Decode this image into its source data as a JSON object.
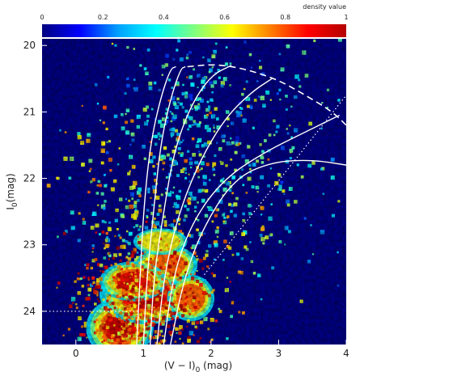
{
  "chart_data": {
    "type": "heatmap",
    "title": "",
    "xlabel": "(V − I)",
    "xlabel_sub": "0",
    "xlabel_unit": " (mag)",
    "ylabel": "I",
    "ylabel_sub": "0",
    "ylabel_unit": "(mag)",
    "xlim": [
      -0.5,
      4.0
    ],
    "ylim": [
      24.5,
      19.9
    ],
    "y_inverted": true,
    "x_ticks": [
      "0",
      "1",
      "2",
      "3",
      "4"
    ],
    "y_ticks": [
      "20",
      "21",
      "22",
      "23",
      "24"
    ],
    "colorbar": {
      "label": "density value",
      "range": [
        0,
        1
      ],
      "ticks": [
        "0",
        "0.2",
        "0.4",
        "0.6",
        "0.8",
        "1"
      ],
      "colormap": [
        "#00007f",
        "#0000ff",
        "#00a0ff",
        "#00ffff",
        "#7fff7f",
        "#ffff00",
        "#ff7f00",
        "#ff0000",
        "#b40000"
      ]
    },
    "background_color": "#000080",
    "density_blobs": [
      {
        "x": 0.65,
        "y": 24.25,
        "rx": 0.5,
        "ry": 0.45,
        "level": 1.0
      },
      {
        "x": 1.05,
        "y": 23.75,
        "rx": 0.7,
        "ry": 0.45,
        "level": 0.95
      },
      {
        "x": 1.35,
        "y": 23.3,
        "rx": 0.45,
        "ry": 0.3,
        "level": 0.85
      },
      {
        "x": 0.85,
        "y": 23.55,
        "rx": 0.5,
        "ry": 0.3,
        "level": 0.9
      },
      {
        "x": 1.7,
        "y": 23.8,
        "rx": 0.35,
        "ry": 0.35,
        "level": 0.8
      },
      {
        "x": 1.25,
        "y": 22.95,
        "rx": 0.4,
        "ry": 0.2,
        "level": 0.7
      }
    ],
    "isochrones": [
      {
        "points": [
          [
            0.9,
            24.5
          ],
          [
            0.95,
            23.5
          ],
          [
            1.0,
            22.5
          ],
          [
            1.1,
            21.5
          ],
          [
            1.25,
            20.8
          ],
          [
            1.4,
            20.35
          ],
          [
            1.48,
            20.32
          ]
        ]
      },
      {
        "points": [
          [
            1.0,
            24.5
          ],
          [
            1.05,
            23.5
          ],
          [
            1.15,
            22.5
          ],
          [
            1.25,
            21.5
          ],
          [
            1.4,
            20.8
          ],
          [
            1.55,
            20.35
          ],
          [
            1.62,
            20.32
          ]
        ]
      },
      {
        "points": [
          [
            1.1,
            24.5
          ],
          [
            1.15,
            23.5
          ],
          [
            1.3,
            22.5
          ],
          [
            1.45,
            21.6
          ],
          [
            1.7,
            20.9
          ],
          [
            2.0,
            20.45
          ],
          [
            2.3,
            20.3
          ]
        ]
      },
      {
        "points": [
          [
            1.2,
            24.5
          ],
          [
            1.3,
            23.5
          ],
          [
            1.5,
            22.6
          ],
          [
            1.8,
            21.8
          ],
          [
            2.2,
            21.1
          ],
          [
            2.6,
            20.7
          ],
          [
            2.9,
            20.5
          ]
        ]
      },
      {
        "points": [
          [
            1.3,
            24.5
          ],
          [
            1.45,
            23.4
          ],
          [
            1.75,
            22.6
          ],
          [
            2.2,
            22.0
          ],
          [
            2.8,
            21.6
          ],
          [
            3.4,
            21.3
          ],
          [
            3.9,
            21.05
          ]
        ]
      },
      {
        "points": [
          [
            1.4,
            24.5
          ],
          [
            1.6,
            23.5
          ],
          [
            1.9,
            22.7
          ],
          [
            2.35,
            22.0
          ],
          [
            2.9,
            21.75
          ],
          [
            3.5,
            21.72
          ],
          [
            4.0,
            21.8
          ]
        ]
      }
    ],
    "dashed_envelope": [
      [
        1.65,
        20.32
      ],
      [
        2.05,
        20.28
      ],
      [
        2.5,
        20.35
      ],
      [
        3.0,
        20.52
      ],
      [
        3.4,
        20.75
      ],
      [
        3.8,
        21.0
      ],
      [
        4.0,
        21.2
      ]
    ],
    "dotted_reference_lines": [
      {
        "points": [
          [
            -0.5,
            24.0
          ],
          [
            0.95,
            24.0
          ]
        ]
      },
      {
        "points": [
          [
            1.9,
            23.45
          ],
          [
            4.0,
            20.75
          ]
        ]
      }
    ]
  }
}
